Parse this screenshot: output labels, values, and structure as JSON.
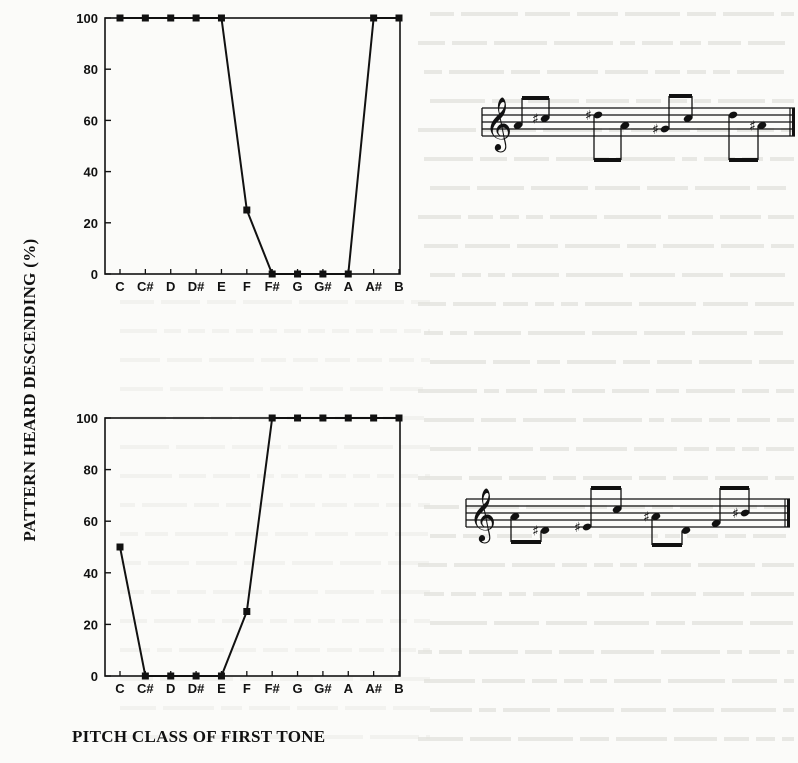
{
  "ylabel": "PATTERN HEARD DESCENDING (%)",
  "xlabel": "PITCH CLASS OF FIRST TONE",
  "chart_data": [
    {
      "type": "line",
      "categories": [
        "C",
        "C#",
        "D",
        "D#",
        "E",
        "F",
        "F#",
        "G",
        "G#",
        "A",
        "A#",
        "B"
      ],
      "values": [
        100,
        100,
        100,
        100,
        100,
        25,
        0,
        0,
        0,
        0,
        100,
        100
      ],
      "ylim": [
        0,
        100
      ],
      "yticks": [
        0,
        20,
        40,
        60,
        80,
        100
      ],
      "grid": false,
      "markers": "square"
    },
    {
      "type": "line",
      "categories": [
        "C",
        "C#",
        "D",
        "D#",
        "E",
        "F",
        "F#",
        "G",
        "G#",
        "A",
        "A#",
        "B"
      ],
      "values": [
        50,
        0,
        0,
        0,
        0,
        25,
        100,
        100,
        100,
        100,
        100,
        100
      ],
      "ylim": [
        0,
        100
      ],
      "yticks": [
        0,
        20,
        40,
        60,
        80,
        100
      ],
      "grid": false,
      "markers": "square"
    }
  ]
}
